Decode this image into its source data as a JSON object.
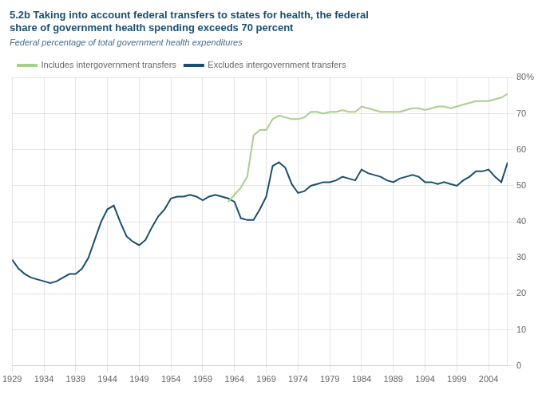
{
  "chart_data": {
    "type": "line",
    "title": [
      "5.2b Taking into account federal transfers to states for health, the federal",
      "share of government health spending exceeds 70 percent"
    ],
    "subtitle": "Federal percentage of total government health expenditures",
    "series": [
      {
        "name": "Includes intergovernment transfers",
        "color": "#a8d08d",
        "x": [
          1963,
          1964,
          1965,
          1966,
          1967,
          1968,
          1969,
          1970,
          1971,
          1972,
          1973,
          1974,
          1975,
          1976,
          1977,
          1978,
          1979,
          1980,
          1981,
          1982,
          1983,
          1984,
          1985,
          1986,
          1987,
          1988,
          1989,
          1990,
          1991,
          1992,
          1993,
          1994,
          1995,
          1996,
          1997,
          1998,
          1999,
          2000,
          2001,
          2002,
          2003,
          2004,
          2005,
          2006,
          2007
        ],
        "values": [
          45.5,
          47.5,
          49.5,
          52.5,
          64.0,
          65.5,
          65.5,
          68.5,
          69.5,
          69.0,
          68.5,
          68.5,
          69.0,
          70.5,
          70.5,
          70.0,
          70.5,
          70.5,
          71.0,
          70.5,
          70.5,
          72.0,
          71.5,
          71.0,
          70.5,
          70.5,
          70.5,
          70.5,
          71.0,
          71.5,
          71.5,
          71.0,
          71.5,
          72.0,
          72.0,
          71.5,
          72.0,
          72.5,
          73.0,
          73.5,
          73.5,
          73.5,
          74.0,
          74.5,
          75.5
        ]
      },
      {
        "name": "Excludes intergovernment transfers",
        "color": "#1a4f6e",
        "x": [
          1929,
          1930,
          1931,
          1932,
          1933,
          1934,
          1935,
          1936,
          1937,
          1938,
          1939,
          1940,
          1941,
          1942,
          1943,
          1944,
          1945,
          1946,
          1947,
          1948,
          1949,
          1950,
          1951,
          1952,
          1953,
          1954,
          1955,
          1956,
          1957,
          1958,
          1959,
          1960,
          1961,
          1962,
          1963,
          1964,
          1965,
          1966,
          1967,
          1968,
          1969,
          1970,
          1971,
          1972,
          1973,
          1974,
          1975,
          1976,
          1977,
          1978,
          1979,
          1980,
          1981,
          1982,
          1983,
          1984,
          1985,
          1986,
          1987,
          1988,
          1989,
          1990,
          1991,
          1992,
          1993,
          1994,
          1995,
          1996,
          1997,
          1998,
          1999,
          2000,
          2001,
          2002,
          2003,
          2004,
          2005,
          2006,
          2007
        ],
        "values": [
          29.5,
          27.0,
          25.5,
          24.5,
          24.0,
          23.5,
          23.0,
          23.5,
          24.5,
          25.5,
          25.5,
          27.0,
          30.0,
          35.0,
          40.0,
          43.5,
          44.5,
          40.0,
          36.0,
          34.5,
          33.5,
          35.0,
          38.5,
          41.5,
          43.5,
          46.5,
          47.0,
          47.0,
          47.5,
          47.0,
          46.0,
          47.0,
          47.5,
          47.0,
          46.5,
          45.5,
          41.0,
          40.5,
          40.5,
          43.5,
          47.0,
          55.5,
          56.5,
          55.0,
          50.5,
          48.0,
          48.5,
          50.0,
          50.5,
          51.0,
          51.0,
          51.5,
          52.5,
          52.0,
          51.5,
          54.5,
          53.5,
          53.0,
          52.5,
          51.5,
          51.0,
          52.0,
          52.5,
          53.0,
          52.5,
          51.0,
          51.0,
          50.5,
          51.0,
          50.5,
          50.0,
          51.5,
          52.5,
          54.0,
          54.0,
          54.5,
          52.5,
          51.0,
          56.5
        ]
      }
    ],
    "xlim": [
      1929,
      2007
    ],
    "xticks": [
      1929,
      1934,
      1939,
      1944,
      1949,
      1954,
      1959,
      1964,
      1969,
      1974,
      1979,
      1984,
      1989,
      1994,
      1999,
      2004
    ],
    "ylim": [
      0,
      80
    ],
    "yticks": [
      0,
      10,
      20,
      30,
      40,
      50,
      60,
      70,
      {
        "value": 80,
        "label": "80%"
      }
    ],
    "grid": true,
    "legend": "upper left"
  }
}
